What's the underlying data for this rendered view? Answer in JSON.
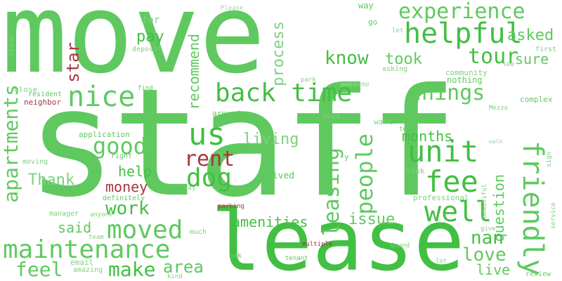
{
  "palette": {
    "green_1": "#5fc95f",
    "green_2": "#43bf43",
    "green_3": "#7fd07f",
    "green_4": "#9ad99a",
    "red": "#a83640"
  },
  "words": {
    "move": "move",
    "staff": "staff",
    "lease": "lease",
    "maintenance": "maintenance",
    "helpful": "helpful",
    "experience": "experience",
    "friendly": "friendly",
    "unit": "unit",
    "back_time": "back time",
    "nice": "nice",
    "us": "us",
    "fee": "fee",
    "well": "well",
    "rent": "rent",
    "dog": "dog",
    "moved": "moved",
    "people": "people",
    "leasing": "leasing",
    "apartments": "apartments",
    "good": "good",
    "things": "things",
    "know": "know",
    "took": "took",
    "tour": "tour",
    "sure": "sure",
    "asked": "asked",
    "recommend": "recommend",
    "pay": "pay",
    "star": "star",
    "process": "process",
    "living": "living",
    "months": "months",
    "question": "question",
    "amenities": "amenities",
    "issue": "issue",
    "love": "love",
    "live": "live",
    "nan": "nan",
    "work": "work",
    "make": "make",
    "feel": "feel",
    "said": "said",
    "area": "area",
    "Thank": "Thank",
    "help": "help",
    "money": "money",
    "first": "first",
    "community": "community",
    "nothing": "nothing",
    "complex": "complex",
    "application": "application",
    "deposit": "deposit",
    "far": "far",
    "Please": "Please",
    "way": "way",
    "go": "go",
    "let": "let",
    "see": "see",
    "park": "park",
    "asking": "asking",
    "awesome": "awesome",
    "find": "find",
    "close": "close",
    "resident": "resident",
    "neighbor": "neighbor",
    "around": "around",
    "clean": "clean",
    "need": "need",
    "want": "want",
    "Mezzo": "Mezzo",
    "tell": "tell",
    "walk": "walk",
    "location": "location",
    "right": "right",
    "y": "y",
    "lived": "lived",
    "sign": "sign",
    "moving": "moving",
    "say": "say",
    "look": "look",
    "definitely": "definitely",
    "professional": "professional",
    "beautiful": "beautiful",
    "manager": "manager",
    "anyone": "anyone",
    "parking": "parking",
    "team": "team",
    "much": "much",
    "give": "give",
    "service": "service",
    "ask": "ask",
    "Grand": "Grand",
    "multiple": "multiple",
    "email": "email",
    "amazing": "amazing",
    "kind": "kind",
    "tenant": "tenant",
    "lot": "lot",
    "review": "review"
  }
}
